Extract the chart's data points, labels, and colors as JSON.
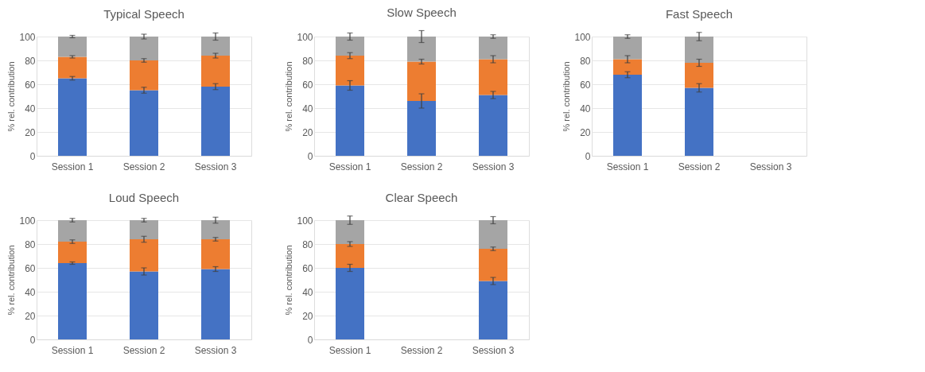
{
  "chart_data": [
    {
      "type": "bar",
      "title": "Typical Speech",
      "ylabel": "% rel. contribution",
      "categories": [
        "Session 1",
        "Session 2",
        "Session 3"
      ],
      "stacked": true,
      "ylim": [
        0,
        100
      ],
      "yticks": [
        0,
        20,
        40,
        60,
        80,
        100
      ],
      "grid": "y",
      "series": [
        {
          "color": "#4472c4",
          "values": [
            65,
            55,
            58
          ],
          "errors": [
            1.5,
            2.5,
            2.5
          ]
        },
        {
          "color": "#ed7d31",
          "values": [
            18,
            25,
            26
          ],
          "errors": [
            1,
            1.5,
            2
          ]
        },
        {
          "color": "#a5a5a5",
          "values": [
            17,
            20,
            16
          ],
          "errors": [
            1,
            2,
            3
          ]
        }
      ]
    },
    {
      "type": "bar",
      "title": "Slow Speech",
      "ylabel": "% rel. contribution",
      "categories": [
        "Session 1",
        "Session 2",
        "Session 3"
      ],
      "stacked": true,
      "ylim": [
        0,
        100
      ],
      "yticks": [
        0,
        20,
        40,
        60,
        80,
        100
      ],
      "grid": "y",
      "series": [
        {
          "color": "#4472c4",
          "values": [
            59,
            46,
            51
          ],
          "errors": [
            4,
            6,
            3
          ]
        },
        {
          "color": "#ed7d31",
          "values": [
            25,
            33,
            30
          ],
          "errors": [
            2.5,
            2,
            3
          ]
        },
        {
          "color": "#a5a5a5",
          "values": [
            16,
            21,
            19
          ],
          "errors": [
            3,
            5,
            1.5
          ]
        }
      ]
    },
    {
      "type": "bar",
      "title": "Fast Speech",
      "ylabel": "% rel. contribution",
      "categories": [
        "Session 1",
        "Session 2",
        "Session 3"
      ],
      "stacked": true,
      "ylim": [
        0,
        100
      ],
      "yticks": [
        0,
        20,
        40,
        60,
        80,
        100
      ],
      "grid": "y",
      "series": [
        {
          "color": "#4472c4",
          "values": [
            68,
            57,
            null
          ],
          "errors": [
            2.5,
            3.5,
            null
          ]
        },
        {
          "color": "#ed7d31",
          "values": [
            13,
            21,
            null
          ],
          "errors": [
            3,
            3,
            null
          ]
        },
        {
          "color": "#a5a5a5",
          "values": [
            19,
            22,
            null
          ],
          "errors": [
            1.5,
            3.5,
            null
          ]
        }
      ]
    },
    {
      "type": "bar",
      "title": "Loud Speech",
      "ylabel": "% rel. contribution",
      "categories": [
        "Session 1",
        "Session 2",
        "Session 3"
      ],
      "stacked": true,
      "ylim": [
        0,
        100
      ],
      "yticks": [
        0,
        20,
        40,
        60,
        80,
        100
      ],
      "grid": "y",
      "series": [
        {
          "color": "#4472c4",
          "values": [
            64,
            57,
            59
          ],
          "errors": [
            1,
            3,
            2
          ]
        },
        {
          "color": "#ed7d31",
          "values": [
            18,
            27,
            25
          ],
          "errors": [
            1.5,
            2.5,
            1.5
          ]
        },
        {
          "color": "#a5a5a5",
          "values": [
            18,
            16,
            16
          ],
          "errors": [
            1.5,
            1.5,
            2.5
          ]
        }
      ]
    },
    {
      "type": "bar",
      "title": "Clear Speech",
      "ylabel": "% rel. contribution",
      "categories": [
        "Session 1",
        "Session 2",
        "Session 3"
      ],
      "stacked": true,
      "ylim": [
        0,
        100
      ],
      "yticks": [
        0,
        20,
        40,
        60,
        80,
        100
      ],
      "grid": "y",
      "series": [
        {
          "color": "#4472c4",
          "values": [
            60,
            null,
            49
          ],
          "errors": [
            3,
            null,
            3
          ]
        },
        {
          "color": "#ed7d31",
          "values": [
            20,
            null,
            27
          ],
          "errors": [
            2,
            null,
            1.5
          ]
        },
        {
          "color": "#a5a5a5",
          "values": [
            20,
            null,
            24
          ],
          "errors": [
            3.5,
            null,
            3
          ]
        }
      ]
    }
  ]
}
